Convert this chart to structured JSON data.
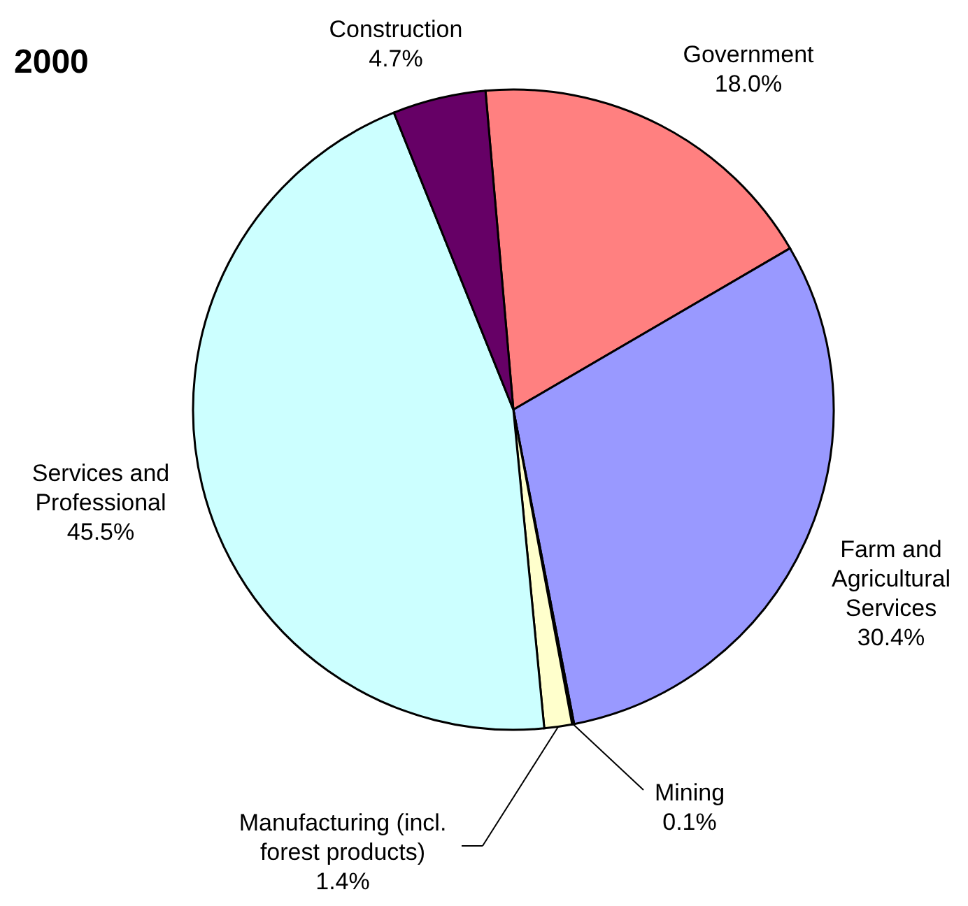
{
  "chart_data": {
    "type": "pie",
    "title": "2000",
    "categories": [
      "Government",
      "Farm and\nAgricultural\nServices",
      "Mining",
      "Manufacturing (incl.\nforest products)",
      "Services and\nProfessional",
      "Construction"
    ],
    "values": [
      18.0,
      30.4,
      0.1,
      1.4,
      45.5,
      4.7
    ],
    "value_labels": [
      "18.0%",
      "30.4%",
      "0.1%",
      "1.4%",
      "45.5%",
      "4.7%"
    ],
    "colors": [
      "#ff8080",
      "#9999ff",
      "#993366",
      "#ffffcc",
      "#ccffff",
      "#660066"
    ]
  }
}
